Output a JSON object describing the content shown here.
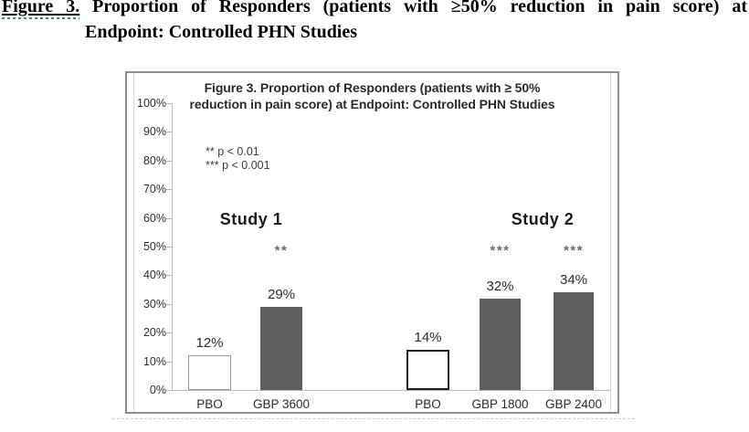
{
  "heading": {
    "label": "Figure 3.",
    "line1_rest": "Proportion of Responders (patients with ≥50% reduction in pain score) at",
    "line2": "Endpoint: Controlled PHN Studies"
  },
  "chart": {
    "title_line1": "Figure 3. Proportion of Responders (patients with ≥ 50%",
    "title_line2": "reduction in pain score) at Endpoint: Controlled PHN Studies"
  },
  "chart_data": {
    "type": "bar",
    "title": "Figure 3. Proportion of Responders (patients with ≥ 50% reduction in pain score) at Endpoint: Controlled PHN Studies",
    "xlabel": "",
    "ylabel": "",
    "ylim": [
      0,
      100
    ],
    "grid": false,
    "y_tick_labels": [
      "0%",
      "10%",
      "20%",
      "30%",
      "40%",
      "50%",
      "60%",
      "70%",
      "80%",
      "90%",
      "100%"
    ],
    "annotations": [
      "** p < 0.01",
      "*** p < 0.001"
    ],
    "legend_position": "upper-left-inside",
    "colors": {
      "treatment_fill": "#5e5e5e",
      "placebo_fill": "#ffffff",
      "placebo_border": "#9b9b9b",
      "placebo_border_dark": "#1f1f1f",
      "axis": "#b8b8b8",
      "box_border": "#8e8e8e"
    },
    "groups": [
      {
        "name": "Study 1",
        "bars": [
          {
            "label": "PBO",
            "value": 12,
            "value_label": "12%",
            "significance": "",
            "kind": "placebo"
          },
          {
            "label": "GBP 3600",
            "value": 29,
            "value_label": "29%",
            "significance": "**",
            "kind": "treatment"
          }
        ]
      },
      {
        "name": "Study 2",
        "bars": [
          {
            "label": "PBO",
            "value": 14,
            "value_label": "14%",
            "significance": "",
            "kind": "placebo"
          },
          {
            "label": "GBP 1800",
            "value": 32,
            "value_label": "32%",
            "significance": "***",
            "kind": "treatment"
          },
          {
            "label": "GBP 2400",
            "value": 34,
            "value_label": "34%",
            "significance": "***",
            "kind": "treatment"
          }
        ]
      }
    ]
  }
}
